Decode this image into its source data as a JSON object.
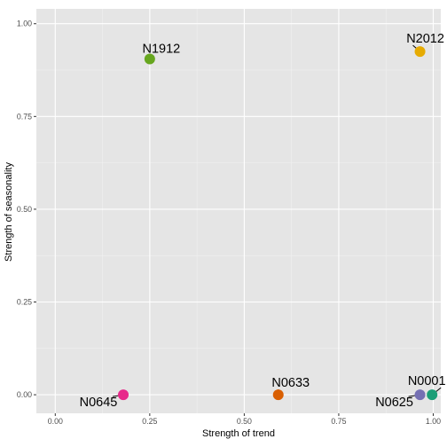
{
  "chart_data": {
    "type": "scatter",
    "xlabel": "Strength of trend",
    "ylabel": "Strength of seasonality",
    "xlim": [
      -0.05,
      1.02
    ],
    "ylim": [
      -0.05,
      1.04
    ],
    "x_ticks": [
      0.0,
      0.25,
      0.5,
      0.75,
      1.0
    ],
    "x_tick_labels": [
      "0.00",
      "0.25",
      "0.50",
      "0.75",
      "1.00"
    ],
    "y_ticks": [
      0.0,
      0.25,
      0.5,
      0.75,
      1.0
    ],
    "y_tick_labels": [
      "0.00",
      "0.25",
      "0.50",
      "0.75",
      "1.00"
    ],
    "grid": true,
    "legend": "none",
    "background": "#e5e5e5",
    "points": [
      {
        "label": "N1912",
        "x": 0.25,
        "y": 0.905,
        "color": "#66a61e"
      },
      {
        "label": "N2012",
        "x": 0.965,
        "y": 0.925,
        "color": "#e6ab02"
      },
      {
        "label": "N0645",
        "x": 0.18,
        "y": 0.0,
        "color": "#e7298a"
      },
      {
        "label": "N0633",
        "x": 0.59,
        "y": 0.0,
        "color": "#d95f02"
      },
      {
        "label": "N0625",
        "x": 0.965,
        "y": 0.0,
        "color": "#7570b3"
      },
      {
        "label": "N0001",
        "x": 0.997,
        "y": 0.0,
        "color": "#1b9e77"
      }
    ]
  }
}
